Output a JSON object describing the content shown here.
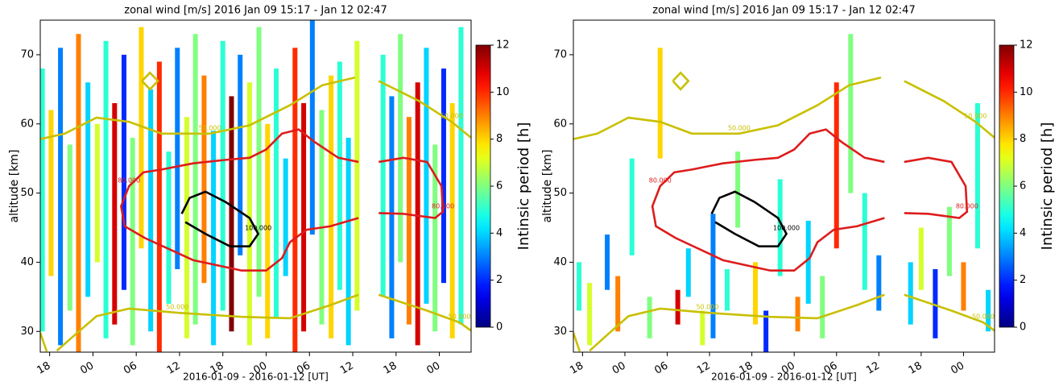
{
  "chart_data": [
    {
      "type": "streak-contour",
      "title": "zonal wind [m/s]   2016 Jan 09 15:17  - Jan 12 02:47",
      "xlabel": "2016-01-09 - 2016-01-12 [UT]",
      "ylabel": "altitude [km]",
      "colorbar_label": "Intinsic period [h]",
      "colormap": "jet",
      "clim": [
        0,
        12
      ],
      "cticks": [
        0,
        2,
        4,
        6,
        8,
        10,
        12
      ],
      "xlim": [
        16.7,
        76.4
      ],
      "ylim": [
        27,
        75
      ],
      "yticks": [
        30,
        40,
        50,
        60,
        70
      ],
      "xticks": [
        18,
        {
          "value": 24,
          "label": "00"
        },
        {
          "value": 30,
          "label": "06"
        },
        {
          "value": 36,
          "label": "12"
        },
        {
          "value": 42,
          "label": "18"
        },
        {
          "value": 48,
          "label": "00"
        },
        {
          "value": 54,
          "label": "06"
        },
        {
          "value": 60,
          "label": "12"
        },
        {
          "value": 66,
          "label": "18"
        },
        {
          "value": 72,
          "label": "00"
        }
      ],
      "streaks": {
        "x": [
          17,
          18.2,
          19.5,
          20.8,
          22,
          23.3,
          24.6,
          25.8,
          27,
          28.3,
          29.5,
          30.7,
          32,
          33.2,
          34.5,
          35.7,
          37,
          38.2,
          39.4,
          40.7,
          42,
          43.2,
          44.4,
          45.7,
          47,
          48.2,
          49.4,
          50.7,
          52,
          53.2,
          54.4,
          55.7,
          57,
          58.2,
          59.4,
          60.6,
          64.2,
          65.4,
          66.6,
          67.8,
          69,
          70.2,
          71.4,
          72.6,
          73.8,
          75
        ],
        "bottom": [
          30,
          38,
          28,
          33,
          27,
          35,
          40,
          29,
          31,
          36,
          28,
          42,
          30,
          27,
          34,
          39,
          29,
          31,
          37,
          28,
          33,
          30,
          41,
          28,
          35,
          29,
          32,
          38,
          27,
          30,
          44,
          31,
          29,
          36,
          28,
          33,
          35,
          29,
          40,
          31,
          28,
          34,
          30,
          37,
          29,
          31
        ],
        "top": [
          68,
          62,
          71,
          57,
          73,
          66,
          60,
          72,
          63,
          70,
          58,
          74,
          65,
          69,
          56,
          71,
          61,
          73,
          67,
          59,
          72,
          64,
          70,
          66,
          74,
          60,
          68,
          55,
          71,
          63,
          75,
          62,
          67,
          69,
          58,
          72,
          70,
          64,
          73,
          61,
          66,
          71,
          57,
          68,
          63,
          74
        ],
        "period": [
          5,
          8,
          3,
          6,
          9,
          4,
          7,
          5,
          11,
          2,
          6,
          8,
          4,
          10,
          5,
          3,
          7,
          6,
          9,
          4,
          5,
          12,
          3,
          7,
          6,
          8,
          5,
          4,
          10,
          11,
          3,
          6,
          8,
          5,
          4,
          7,
          5,
          3,
          6,
          9,
          11,
          4,
          6,
          2,
          8,
          5
        ]
      },
      "contours": [
        {
          "label": "80.000",
          "color": "#dd1c1c",
          "x": [
            60.8,
            56.9,
            53.6,
            51.3,
            50.2,
            48.0,
            44.6,
            37.9,
            31.2,
            28.4,
            27.9,
            29.0,
            31.0,
            33.5,
            37.9,
            42.4,
            45.7,
            48.0,
            50.2,
            52.5,
            54.7,
            58.0,
            60.8
          ],
          "y": [
            46.4,
            45.2,
            44.7,
            42.9,
            40.6,
            38.8,
            38.8,
            40.3,
            43.5,
            45.2,
            48.1,
            51.0,
            53.0,
            53.4,
            54.3,
            54.8,
            55.1,
            56.3,
            58.6,
            59.2,
            57.4,
            55.1,
            54.5
          ]
        },
        {
          "label": "80.000",
          "color": "#dd1c1c",
          "x": [
            63.6,
            67.0,
            70.3,
            72.3,
            72.5,
            71.4,
            67.0,
            63.6
          ],
          "y": [
            54.5,
            55.1,
            54.5,
            51.0,
            47.3,
            46.4,
            47.0,
            47.1
          ]
        },
        {
          "label": "100.000",
          "color": "#000000",
          "x": [
            36.3,
            37.4,
            39.6,
            42.4,
            45.7,
            46.9,
            45.7,
            43.0,
            39.6,
            36.8
          ],
          "y": [
            47.0,
            49.3,
            50.2,
            48.7,
            46.4,
            44.1,
            42.3,
            42.3,
            44.1,
            45.8
          ]
        },
        {
          "label": "50.000",
          "color": "#c8c000",
          "x": [
            16.7,
            20.1,
            24.5,
            29.0,
            33.5,
            40.2,
            45.7,
            51.3,
            55.8,
            60.3
          ],
          "y": [
            57.8,
            58.6,
            60.9,
            60.3,
            58.6,
            58.6,
            59.8,
            62.7,
            65.6,
            66.7
          ]
        },
        {
          "label": "50.000",
          "color": "#c8c000",
          "x": [
            63.6,
            69.2,
            73.7,
            76.4
          ],
          "y": [
            66.2,
            63.3,
            60.3,
            58.0
          ]
        },
        {
          "color": "#c8c000",
          "x": [
            30.8,
            31.9,
            33.0,
            31.9,
            30.8
          ],
          "y": [
            66.2,
            67.4,
            66.2,
            65.0,
            66.2
          ]
        },
        {
          "label": "50.000",
          "color": "#c8c000",
          "x": [
            19.0,
            21.5,
            24.5,
            29.0,
            35.7,
            44.6,
            51.3,
            56.9,
            60.8
          ],
          "y": [
            27.2,
            29.5,
            32.2,
            33.3,
            32.7,
            32.1,
            31.9,
            33.8,
            35.3
          ]
        },
        {
          "label": "50.000",
          "color": "#c8c000",
          "x": [
            63.6,
            70.3,
            74.8,
            76.4
          ],
          "y": [
            35.3,
            33.0,
            31.3,
            30.1
          ]
        },
        {
          "color": "#c8c000",
          "x": [
            16.7,
            17.6
          ],
          "y": [
            29.8,
            27.1
          ]
        }
      ]
    },
    {
      "type": "streak-contour",
      "title": "zonal wind [m/s]   2016 Jan 09 15:17  - Jan 12 02:47",
      "xlabel": "2016-01-09 - 2016-01-12 [UT]",
      "ylabel": "altitude [km]",
      "colorbar_label": "Intinsic period [h]",
      "colormap": "jet",
      "clim": [
        0,
        12
      ],
      "cticks": [
        0,
        2,
        4,
        6,
        8,
        10,
        12
      ],
      "xlim": [
        16.7,
        76.4
      ],
      "ylim": [
        27,
        75
      ],
      "yticks": [
        30,
        40,
        50,
        60,
        70
      ],
      "xticks": [
        18,
        {
          "value": 24,
          "label": "00"
        },
        {
          "value": 30,
          "label": "06"
        },
        {
          "value": 36,
          "label": "12"
        },
        {
          "value": 42,
          "label": "18"
        },
        {
          "value": 48,
          "label": "00"
        },
        {
          "value": 54,
          "label": "06"
        },
        {
          "value": 60,
          "label": "12"
        },
        {
          "value": 66,
          "label": "18"
        },
        {
          "value": 72,
          "label": "00"
        }
      ],
      "streaks": {
        "x": [
          17.5,
          19,
          21.5,
          23,
          25,
          27.5,
          29,
          31.5,
          33,
          35,
          36.5,
          38.5,
          40,
          42.5,
          44,
          46,
          48.5,
          50,
          52,
          54,
          56,
          58,
          60,
          64.5,
          66,
          68,
          70,
          72,
          74,
          75.5
        ],
        "bottom": [
          33,
          28,
          36,
          30,
          41,
          29,
          55,
          31,
          35,
          28,
          29,
          33,
          45,
          31,
          27,
          38,
          30,
          34,
          29,
          42,
          50,
          36,
          33,
          31,
          36,
          29,
          38,
          33,
          42,
          30
        ],
        "top": [
          40,
          37,
          44,
          38,
          55,
          35,
          71,
          36,
          42,
          33,
          47,
          39,
          56,
          40,
          33,
          52,
          35,
          46,
          38,
          66,
          73,
          50,
          41,
          40,
          45,
          39,
          48,
          40,
          63,
          36
        ],
        "period": [
          5,
          7,
          3,
          9,
          5,
          6,
          8,
          11,
          4,
          7,
          3,
          5,
          6,
          8,
          2,
          5,
          9,
          4,
          6,
          10,
          6,
          5,
          3,
          4,
          7,
          2,
          6,
          9,
          5,
          4
        ]
      },
      "contours": [
        {
          "label": "80.000",
          "color": "#dd1c1c",
          "x": [
            60.8,
            56.9,
            53.6,
            51.3,
            50.2,
            48.0,
            44.6,
            37.9,
            31.2,
            28.4,
            27.9,
            29.0,
            31.0,
            33.5,
            37.9,
            42.4,
            45.7,
            48.0,
            50.2,
            52.5,
            54.7,
            58.0,
            60.8
          ],
          "y": [
            46.4,
            45.2,
            44.7,
            42.9,
            40.6,
            38.8,
            38.8,
            40.3,
            43.5,
            45.2,
            48.1,
            51.0,
            53.0,
            53.4,
            54.3,
            54.8,
            55.1,
            56.3,
            58.6,
            59.2,
            57.4,
            55.1,
            54.5
          ]
        },
        {
          "label": "80.000",
          "color": "#dd1c1c",
          "x": [
            63.6,
            67.0,
            70.3,
            72.3,
            72.5,
            71.4,
            67.0,
            63.6
          ],
          "y": [
            54.5,
            55.1,
            54.5,
            51.0,
            47.3,
            46.4,
            47.0,
            47.1
          ]
        },
        {
          "label": "100.000",
          "color": "#000000",
          "x": [
            36.3,
            37.4,
            39.6,
            42.4,
            45.7,
            46.9,
            45.7,
            43.0,
            39.6,
            36.8
          ],
          "y": [
            47.0,
            49.3,
            50.2,
            48.7,
            46.4,
            44.1,
            42.3,
            42.3,
            44.1,
            45.8
          ]
        },
        {
          "label": "50.000",
          "color": "#c8c000",
          "x": [
            16.7,
            20.1,
            24.5,
            29.0,
            33.5,
            40.2,
            45.7,
            51.3,
            55.8,
            60.3
          ],
          "y": [
            57.8,
            58.6,
            60.9,
            60.3,
            58.6,
            58.6,
            59.8,
            62.7,
            65.6,
            66.7
          ]
        },
        {
          "label": "50.000",
          "color": "#c8c000",
          "x": [
            63.6,
            69.2,
            73.7,
            76.4
          ],
          "y": [
            66.2,
            63.3,
            60.3,
            58.0
          ]
        },
        {
          "color": "#c8c000",
          "x": [
            30.8,
            31.9,
            33.0,
            31.9,
            30.8
          ],
          "y": [
            66.2,
            67.4,
            66.2,
            65.0,
            66.2
          ]
        },
        {
          "label": "50.000",
          "color": "#c8c000",
          "x": [
            19.0,
            21.5,
            24.5,
            29.0,
            35.7,
            44.6,
            51.3,
            56.9,
            60.8
          ],
          "y": [
            27.2,
            29.5,
            32.2,
            33.3,
            32.7,
            32.1,
            31.9,
            33.8,
            35.3
          ]
        },
        {
          "label": "50.000",
          "color": "#c8c000",
          "x": [
            63.6,
            70.3,
            74.8,
            76.4
          ],
          "y": [
            35.3,
            33.0,
            31.3,
            30.1
          ]
        },
        {
          "color": "#c8c000",
          "x": [
            16.7,
            17.6
          ],
          "y": [
            29.8,
            27.1
          ]
        }
      ]
    }
  ]
}
